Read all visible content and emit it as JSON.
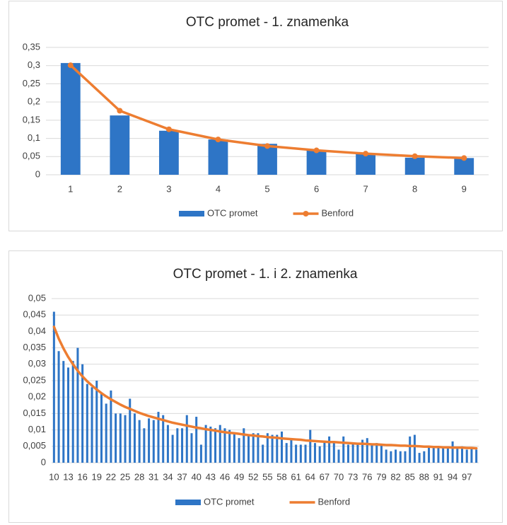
{
  "chart_data": [
    {
      "type": "combo",
      "title": "OTC promet - 1. znamenka",
      "categories": [
        "1",
        "2",
        "3",
        "4",
        "5",
        "6",
        "7",
        "8",
        "9"
      ],
      "series": [
        {
          "name": "OTC promet",
          "type": "bar",
          "color": "#2e75c6",
          "values": [
            0.307,
            0.163,
            0.121,
            0.097,
            0.085,
            0.068,
            0.057,
            0.047,
            0.046
          ]
        },
        {
          "name": "Benford",
          "type": "line",
          "color": "#ed7d31",
          "marker": true,
          "values": [
            0.301,
            0.176,
            0.125,
            0.097,
            0.079,
            0.067,
            0.058,
            0.051,
            0.046
          ]
        }
      ],
      "ylim": [
        0,
        0.35
      ],
      "yticks": [
        0,
        {
          "value": 0.05,
          "label": "0,05"
        },
        {
          "value": 0.1,
          "label": "0,1"
        },
        {
          "value": 0.15,
          "label": "0,15"
        },
        {
          "value": 0.2,
          "label": "0,2"
        },
        {
          "value": 0.25,
          "label": "0,25"
        },
        {
          "value": 0.3,
          "label": "0,3"
        },
        {
          "value": 0.35,
          "label": "0,35"
        }
      ],
      "grid": true,
      "legend": "bottom"
    },
    {
      "type": "combo",
      "title": "OTC promet - 1. i 2. znamenka",
      "categories": [
        "10",
        null,
        null,
        "13",
        null,
        null,
        "16",
        null,
        null,
        "19",
        null,
        null,
        "22",
        null,
        null,
        "25",
        null,
        null,
        "28",
        null,
        null,
        "31",
        null,
        null,
        "34",
        null,
        null,
        "37",
        null,
        null,
        "40",
        null,
        null,
        "43",
        null,
        null,
        "46",
        null,
        null,
        "49",
        null,
        null,
        "52",
        null,
        null,
        "55",
        null,
        null,
        "58",
        null,
        null,
        "61",
        null,
        null,
        "64",
        null,
        null,
        "67",
        null,
        null,
        "70",
        null,
        null,
        "73",
        null,
        null,
        "76",
        null,
        null,
        "79",
        null,
        null,
        "82",
        null,
        null,
        "85",
        null,
        null,
        "88",
        null,
        null,
        "91",
        null,
        null,
        "94",
        null,
        null,
        "97",
        null,
        null
      ],
      "series": [
        {
          "name": "OTC promet",
          "type": "bar",
          "color": "#2e75c6",
          "values": [
            0.046,
            0.034,
            0.031,
            0.029,
            0.031,
            0.035,
            0.03,
            0.024,
            0.023,
            0.025,
            0.021,
            0.018,
            0.022,
            0.015,
            0.015,
            0.0145,
            0.0195,
            0.015,
            0.013,
            0.0105,
            0.0135,
            0.013,
            0.0155,
            0.0145,
            0.0115,
            0.0085,
            0.0105,
            0.0105,
            0.0145,
            0.009,
            0.014,
            0.0055,
            0.0115,
            0.011,
            0.0105,
            0.0115,
            0.0105,
            0.01,
            0.009,
            0.0075,
            0.0105,
            0.0085,
            0.009,
            0.009,
            0.0055,
            0.009,
            0.0085,
            0.0085,
            0.0095,
            0.006,
            0.0075,
            0.0055,
            0.0055,
            0.0055,
            0.01,
            0.006,
            0.005,
            0.0065,
            0.008,
            0.0065,
            0.004,
            0.008,
            0.0055,
            0.006,
            0.006,
            0.007,
            0.0075,
            0.0055,
            0.006,
            0.0055,
            0.004,
            0.0035,
            0.004,
            0.0035,
            0.0035,
            0.008,
            0.0085,
            0.003,
            0.0035,
            0.005,
            0.0045,
            0.0045,
            0.0045,
            0.005,
            0.0065,
            0.0045,
            0.005,
            0.004,
            0.0045,
            0.004
          ]
        },
        {
          "name": "Benford",
          "type": "line",
          "color": "#ed7d31",
          "marker": false,
          "values": [
            0.0414,
            0.0378,
            0.0348,
            0.0322,
            0.03,
            0.028,
            0.0263,
            0.0248,
            0.0235,
            0.0223,
            0.0212,
            0.0202,
            0.0193,
            0.0185,
            0.0177,
            0.017,
            0.0164,
            0.0158,
            0.0152,
            0.0147,
            0.0142,
            0.0138,
            0.0134,
            0.013,
            0.0126,
            0.0122,
            0.0119,
            0.0116,
            0.0113,
            0.011,
            0.0107,
            0.0105,
            0.0102,
            0.01,
            0.0098,
            0.0095,
            0.0093,
            0.0091,
            0.009,
            0.0088,
            0.0086,
            0.0084,
            0.0083,
            0.0081,
            0.008,
            0.0078,
            0.0077,
            0.0076,
            0.0074,
            0.0073,
            0.0072,
            0.0071,
            0.007,
            0.0068,
            0.0067,
            0.0066,
            0.0065,
            0.0064,
            0.0063,
            0.0063,
            0.0062,
            0.0061,
            0.006,
            0.0059,
            0.0058,
            0.0058,
            0.0057,
            0.0056,
            0.0056,
            0.0055,
            0.0054,
            0.0054,
            0.0053,
            0.0052,
            0.0052,
            0.0051,
            0.0051,
            0.005,
            0.0049,
            0.0049,
            0.0048,
            0.0048,
            0.0047,
            0.0047,
            0.0046,
            0.0046,
            0.0046,
            0.0045,
            0.0045,
            0.0044
          ]
        }
      ],
      "ylim": [
        0,
        0.05
      ],
      "yticks": [
        0,
        {
          "value": 0.005,
          "label": "0,005"
        },
        {
          "value": 0.01,
          "label": "0,01"
        },
        {
          "value": 0.015,
          "label": "0,015"
        },
        {
          "value": 0.02,
          "label": "0,02"
        },
        {
          "value": 0.025,
          "label": "0,025"
        },
        {
          "value": 0.03,
          "label": "0,03"
        },
        {
          "value": 0.035,
          "label": "0,035"
        },
        {
          "value": 0.04,
          "label": "0,04"
        },
        {
          "value": 0.045,
          "label": "0,045"
        },
        {
          "value": 0.05,
          "label": "0,05"
        }
      ],
      "grid": true,
      "legend": "bottom"
    }
  ]
}
